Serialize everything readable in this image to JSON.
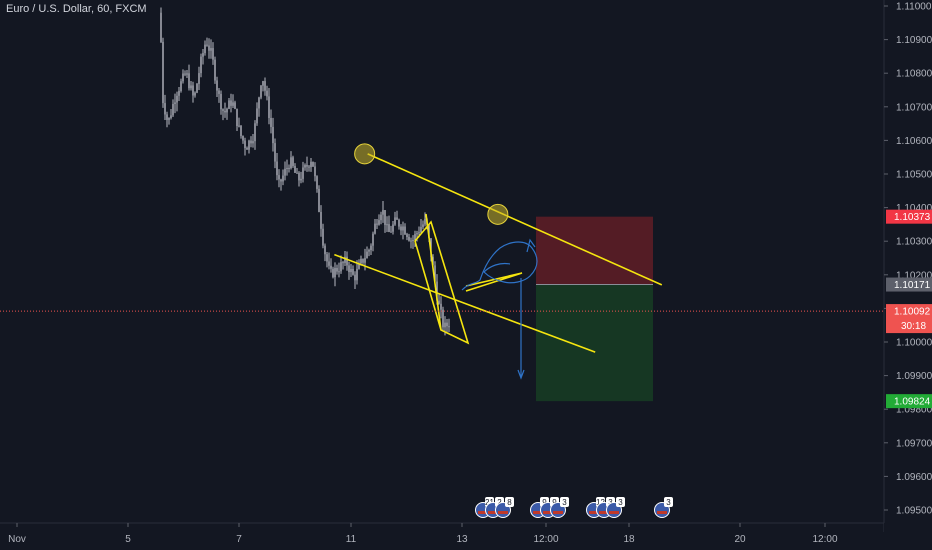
{
  "header": {
    "symbol": "Euro / U.S. Dollar, 60, FXCM"
  },
  "colors": {
    "background": "#131722",
    "candle_up": "#b7bac3",
    "candle_down": "#b7bac3",
    "trend": "#f5e50f",
    "sketch": "#2f73c8",
    "stop_zone": "#6b1f27",
    "target_zone": "#173d23",
    "entry_tag": "#5d606b",
    "stop_tag": "#f23645",
    "target_tag": "#22ab36",
    "price_tag": "#ef5350",
    "price_line": "#ef5350"
  },
  "chart_data": {
    "type": "candlestick",
    "symbol": "EURUSD",
    "timeframe": "60",
    "x_ticks": [
      "Nov",
      "5",
      "7",
      "11",
      "13",
      "12:00",
      "18",
      "20",
      "12:00"
    ],
    "y_ticks": [
      "1.11000",
      "1.10900",
      "1.10800",
      "1.10700",
      "1.10600",
      "1.10500",
      "1.10400",
      "1.10300",
      "1.10200",
      "1.10100",
      "1.10000",
      "1.09900",
      "1.09800",
      "1.09700",
      "1.09600",
      "1.09500"
    ],
    "ylim": [
      1.0946,
      1.1102
    ],
    "price_labels": {
      "stop": "1.10373",
      "entry": "1.10171",
      "current": "1.10092",
      "countdown": "30:18",
      "target": "1.09824"
    },
    "price_levels": {
      "stop": 1.10373,
      "entry": 1.10171,
      "current": 1.10092,
      "target": 1.09824
    },
    "channel_upper": [
      {
        "x": 0.3,
        "y": 1.1056
      },
      {
        "x": 5.6,
        "y": 1.1017
      }
    ],
    "channel_lower": [
      {
        "x": -0.3,
        "y": 1.1026
      },
      {
        "x": 4.4,
        "y": 1.0997
      }
    ],
    "markers": [
      {
        "x": 0.3,
        "y": 1.1056
      },
      {
        "x": 2.7,
        "y": 1.1038
      }
    ],
    "events": [
      {
        "labels": [
          "21",
          "2",
          "8"
        ]
      },
      {
        "labels": [
          "9",
          "9",
          "3"
        ]
      },
      {
        "labels": [
          "12",
          "3",
          "3"
        ]
      },
      {
        "labels": [
          "3"
        ]
      }
    ]
  }
}
